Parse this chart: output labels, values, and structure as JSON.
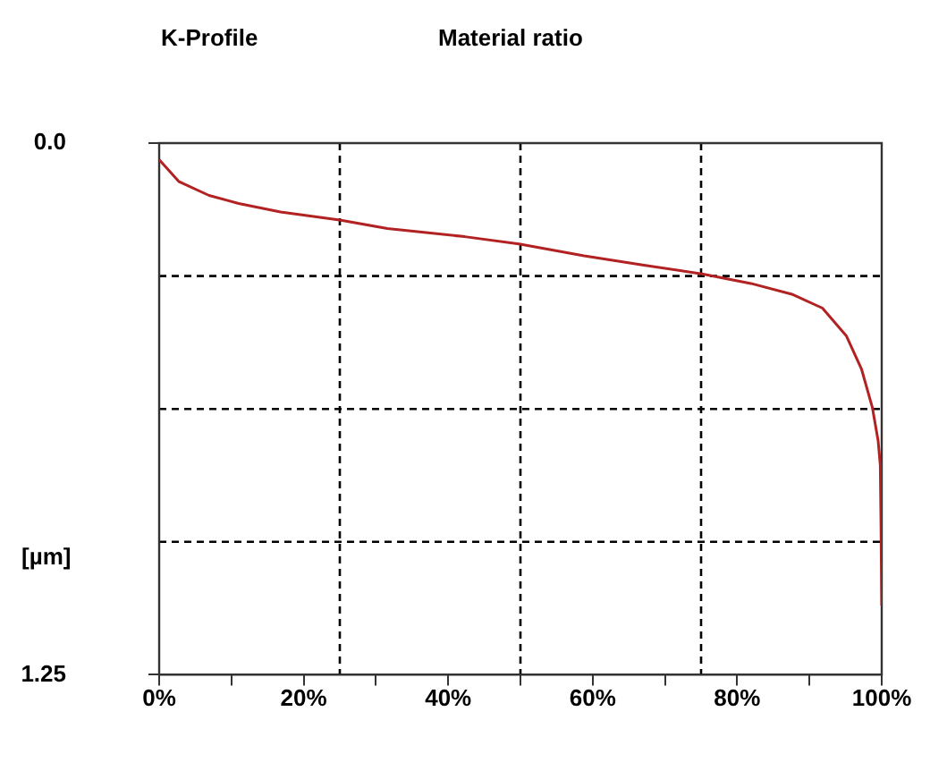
{
  "chart_data": {
    "type": "line",
    "title": "K-Profile",
    "subtitle": "Material ratio",
    "ylabel": "[µm]",
    "x": [
      0,
      2.7,
      6.9,
      11,
      16.8,
      25,
      31.6,
      42.3,
      49.8,
      58.8,
      67.1,
      75.3,
      81.9,
      87.7,
      91.8,
      95.1,
      97.2,
      98.7,
      99.5,
      99.8,
      99.9,
      100
    ],
    "series": [
      {
        "color": "#b22222",
        "values": [
          0.039,
          0.09,
          0.123,
          0.142,
          0.162,
          0.181,
          0.201,
          0.22,
          0.237,
          0.265,
          0.287,
          0.308,
          0.33,
          0.356,
          0.388,
          0.453,
          0.531,
          0.621,
          0.699,
          0.757,
          0.9,
          1.087
        ]
      }
    ],
    "xlim": [
      0,
      100
    ],
    "xticks": [
      {
        "value": 0,
        "label": "0%"
      },
      {
        "value": 10,
        "label": null
      },
      {
        "value": 20,
        "label": "20%"
      },
      {
        "value": 30,
        "label": null
      },
      {
        "value": 40,
        "label": "40%"
      },
      {
        "value": 50,
        "label": null
      },
      {
        "value": 60,
        "label": "60%"
      },
      {
        "value": 70,
        "label": null
      },
      {
        "value": 80,
        "label": "80%"
      },
      {
        "value": 90,
        "label": null
      },
      {
        "value": 100,
        "label": "100%"
      }
    ],
    "ylim": [
      1.25,
      0
    ],
    "yticks": [
      {
        "value": 0,
        "label": "0.0"
      },
      1.25
    ],
    "ref_lines": [
      {
        "axis": "x",
        "value": 25,
        "color": "#000000",
        "line_style": "dashed"
      },
      {
        "axis": "x",
        "value": 50,
        "color": "#000000",
        "line_style": "dashed"
      },
      {
        "axis": "x",
        "value": 75,
        "color": "#000000",
        "line_style": "dashed"
      },
      {
        "axis": "y",
        "value": 0.3125,
        "color": "#000000",
        "line_style": "dashed"
      },
      {
        "axis": "y",
        "value": 0.625,
        "color": "#000000",
        "line_style": "dashed"
      },
      {
        "axis": "y",
        "value": 0.9375,
        "color": "#000000",
        "line_style": "dashed"
      }
    ],
    "grid": false,
    "legend": false,
    "marker": "none",
    "line_style": "solid"
  }
}
